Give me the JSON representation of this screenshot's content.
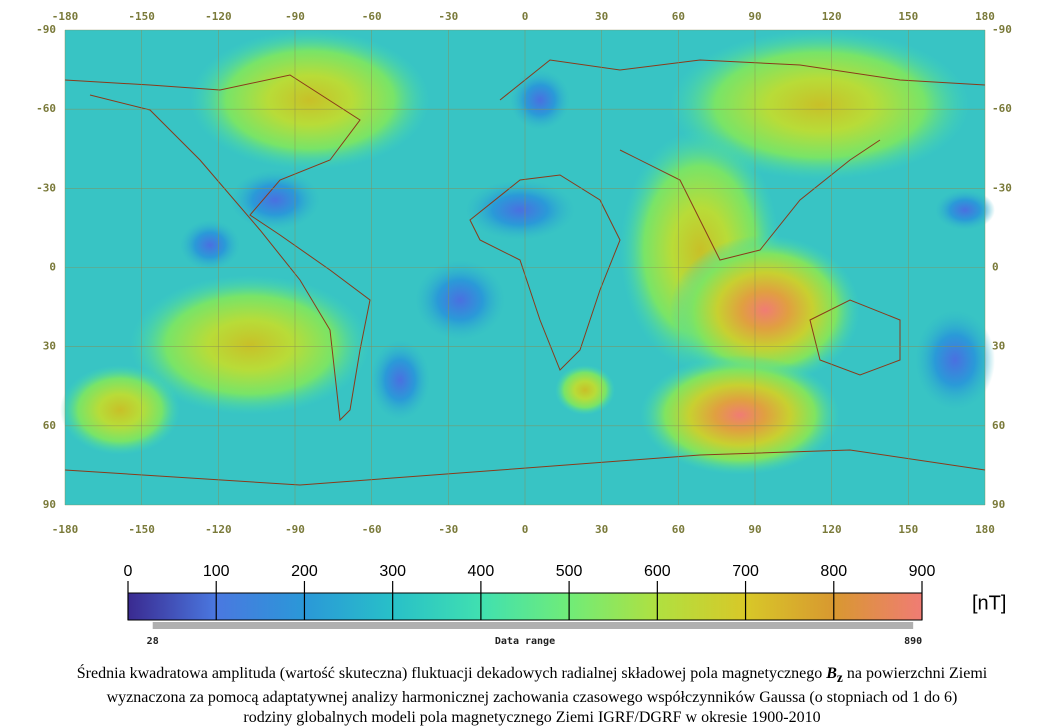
{
  "map": {
    "x_ticks": [
      -180,
      -150,
      -120,
      -90,
      -60,
      -30,
      0,
      30,
      60,
      90,
      120,
      150,
      180
    ],
    "y_ticks": [
      -90,
      -60,
      -30,
      0,
      30,
      60,
      90
    ]
  },
  "colorbar": {
    "ticks": [
      0,
      100,
      200,
      300,
      400,
      500,
      600,
      700,
      800,
      900
    ],
    "colors": [
      "#3a2a90",
      "#4a78e0",
      "#2a98d8",
      "#28c0c8",
      "#40e0b0",
      "#70ec78",
      "#b0e040",
      "#d8c828",
      "#d89830",
      "#f07c74"
    ],
    "unit": "[nT]",
    "data_range": {
      "label": "Data range",
      "min": 28,
      "max": 890
    }
  },
  "caption": {
    "line1_before": "Średnia kwadratowa amplituda (wartość skuteczna) fluktuacji dekadowych radialnej składowej pola magnetycznego ",
    "symbol": "B",
    "subscript": "z",
    "line1_after": " na powierzchni Ziemi",
    "line2": "wyznaczona za pomocą adaptatywnej analizy harmonicznej zachowania czasowego współczynników Gaussa (o stopniach od 1 do 6)",
    "line3": "rodziny globalnych modeli pola magnetycznego Ziemi IGRF/DGRF w okresie 1900-2010"
  }
}
